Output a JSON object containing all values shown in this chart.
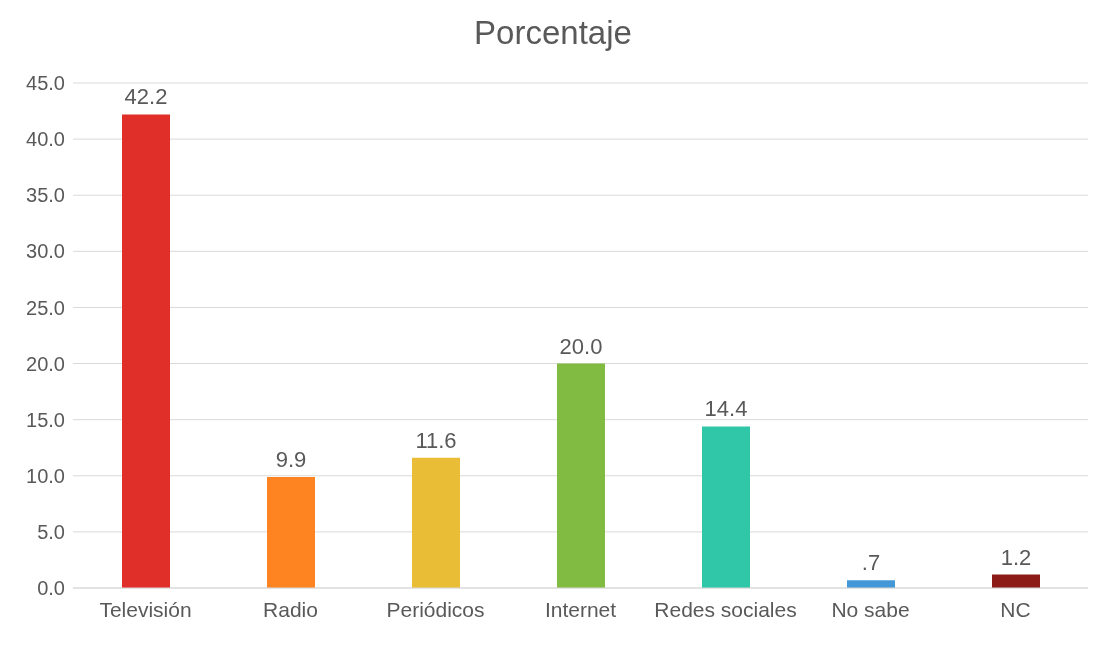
{
  "chart_data": {
    "type": "bar",
    "title": "Porcentaje",
    "categories": [
      "Televisión",
      "Radio",
      "Periódicos",
      "Internet",
      "Redes sociales",
      "No sabe",
      "NC"
    ],
    "values": [
      42.2,
      9.9,
      11.6,
      20.0,
      14.4,
      0.7,
      1.2
    ],
    "colors": [
      "#e02e28",
      "#fd8420",
      "#e9bd36",
      "#82bb41",
      "#30c6a8",
      "#4498d8",
      "#8c1a17"
    ],
    "value_labels": [
      "42.2",
      "9.9",
      "11.6",
      "20.0",
      "14.4",
      ".7",
      "1.2"
    ],
    "ylim": [
      0,
      45
    ],
    "yticks": [
      {
        "value": 0,
        "label": "0.0"
      },
      {
        "value": 5,
        "label": "5.0"
      },
      {
        "value": 10,
        "label": "10.0"
      },
      {
        "value": 15,
        "label": "15.0"
      },
      {
        "value": 20,
        "label": "20.0"
      },
      {
        "value": 25,
        "label": "25.0"
      },
      {
        "value": 30,
        "label": "30.0"
      },
      {
        "value": 35,
        "label": "35.0"
      },
      {
        "value": 40,
        "label": "40.0"
      },
      {
        "value": 45,
        "label": "45.0"
      }
    ],
    "grid": "y",
    "legend": false
  }
}
